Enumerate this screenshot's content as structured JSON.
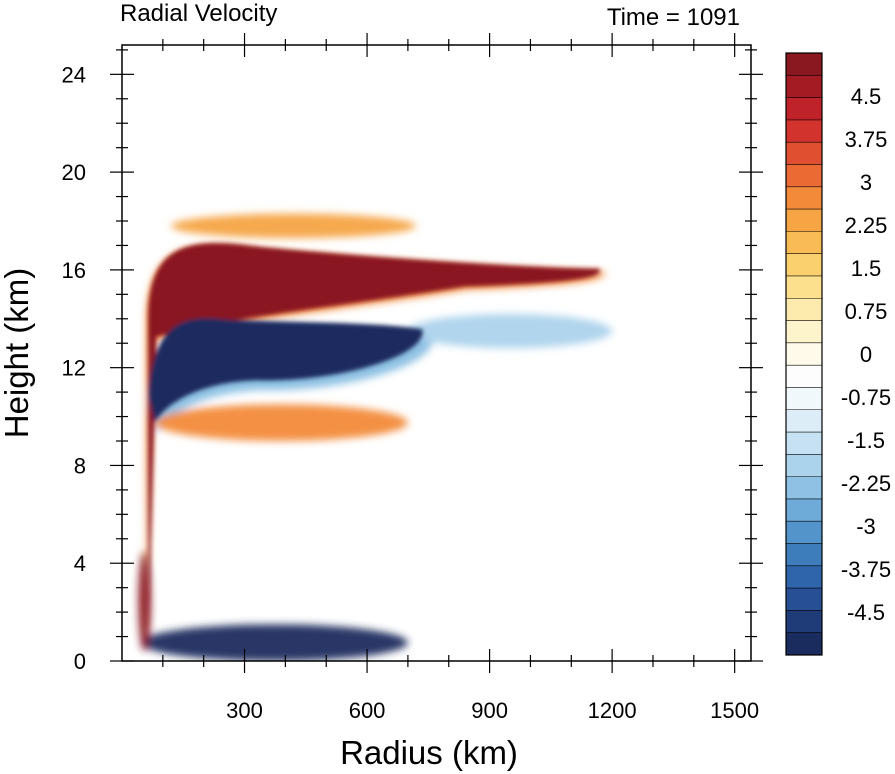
{
  "chart_data": {
    "type": "heatmap",
    "title": "Radial Velocity",
    "subtitle": "Time = 1091",
    "xlabel": "Radius (km)",
    "ylabel": "Height (km)",
    "xlim": [
      0,
      1540
    ],
    "ylim": [
      0,
      25.2
    ],
    "xticks": [
      300,
      600,
      900,
      1200,
      1500
    ],
    "yticks": [
      0,
      4,
      8,
      12,
      16,
      20,
      24
    ],
    "colorbar": {
      "min": -5.25,
      "max": 5.25,
      "step": 0.25,
      "tick_labels": [
        "4.5",
        "3.75",
        "3",
        "2.25",
        "1.5",
        "0.75",
        "0",
        "-0.75",
        "-1.5",
        "-2.25",
        "-3",
        "-3.75",
        "-4.5"
      ],
      "tick_values": [
        4.5,
        3.75,
        3,
        2.25,
        1.5,
        0.75,
        0,
        -0.75,
        -1.5,
        -2.25,
        -3,
        -3.75,
        -4.5
      ],
      "colors_top_to_bottom": [
        "#8a1820",
        "#a31c24",
        "#bf2228",
        "#d2342d",
        "#e05030",
        "#eb6a33",
        "#f28a3a",
        "#f6a444",
        "#f8bb55",
        "#fad06e",
        "#fce08e",
        "#fdebad",
        "#fef4cc",
        "#fffaea",
        "#fdfdfd",
        "#f1f8fc",
        "#dcedf7",
        "#c6e2f2",
        "#acd3ec",
        "#8ec1e3",
        "#6fabd8",
        "#5395cb",
        "#3d7dbc",
        "#2f65aa",
        "#264f95",
        "#1f3b78",
        "#1a2c5e"
      ]
    },
    "features": [
      {
        "name": "upper-level outflow",
        "sign": "positive",
        "radius_km": [
          60,
          1180
        ],
        "height_km": [
          14.0,
          17.0
        ],
        "peak": 5.25
      },
      {
        "name": "mid-level inflow",
        "sign": "negative",
        "radius_km": [
          60,
          760
        ],
        "height_km": [
          11.0,
          13.8
        ],
        "peak": -5.25
      },
      {
        "name": "upper inflow band",
        "sign": "negative",
        "radius_km": [
          700,
          1200
        ],
        "height_km": [
          12.8,
          14.2
        ],
        "peak": -2.0
      },
      {
        "name": "outflow band near 10 km",
        "sign": "positive",
        "radius_km": [
          80,
          700
        ],
        "height_km": [
          9.0,
          10.5
        ],
        "peak": 3.0
      },
      {
        "name": "outflow layer near 18 km",
        "sign": "positive",
        "radius_km": [
          120,
          720
        ],
        "height_km": [
          17.3,
          18.3
        ],
        "peak": 2.5
      },
      {
        "name": "boundary-layer inflow",
        "sign": "negative",
        "radius_km": [
          45,
          700
        ],
        "height_km": [
          0,
          1.5
        ],
        "peak": -5.25
      },
      {
        "name": "eyewall low-level outflow",
        "sign": "positive",
        "radius_km": [
          40,
          70
        ],
        "height_km": [
          0.4,
          4.5
        ],
        "peak": 5.25
      }
    ]
  }
}
